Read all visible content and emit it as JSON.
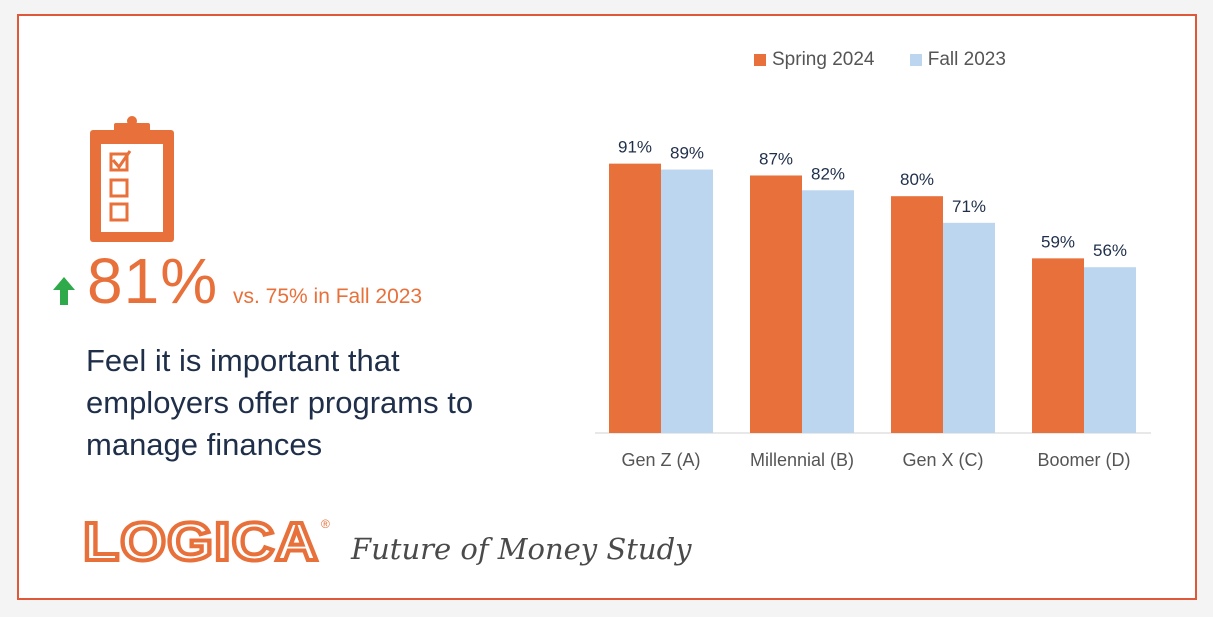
{
  "stat": {
    "value": "81%",
    "comparison": "vs. 75% in Fall 2023"
  },
  "statement": "Feel it is important that employers offer programs to manage finances",
  "logo": {
    "brand": "LOGICA",
    "registered": "®",
    "tagline": "Future of Money Study"
  },
  "colors": {
    "accent": "#e8703a",
    "series_spring": "#e8703a",
    "series_fall": "#bcd6ef",
    "arrow": "#2eaa4a",
    "frame": "#e0583a",
    "text_dark": "#1f2f4a"
  },
  "icons": {
    "clipboard": "clipboard-checklist-icon",
    "arrow": "arrow-up-icon"
  },
  "chart_data": {
    "type": "bar",
    "categories": [
      "Gen Z (A)",
      "Millennial (B)",
      "Gen X (C)",
      "Boomer (D)"
    ],
    "series": [
      {
        "name": "Spring 2024",
        "values": [
          91,
          87,
          80,
          59
        ],
        "color": "#e8703a"
      },
      {
        "name": "Fall 2023",
        "values": [
          89,
          82,
          71,
          56
        ],
        "color": "#bcd6ef"
      }
    ],
    "data_labels": [
      [
        "91%",
        "87%",
        "80%",
        "59%"
      ],
      [
        "89%",
        "82%",
        "71%",
        "56%"
      ]
    ],
    "title": "",
    "xlabel": "",
    "ylabel": "",
    "ylim": [
      0,
      100
    ],
    "legend": "top",
    "grid": false
  }
}
